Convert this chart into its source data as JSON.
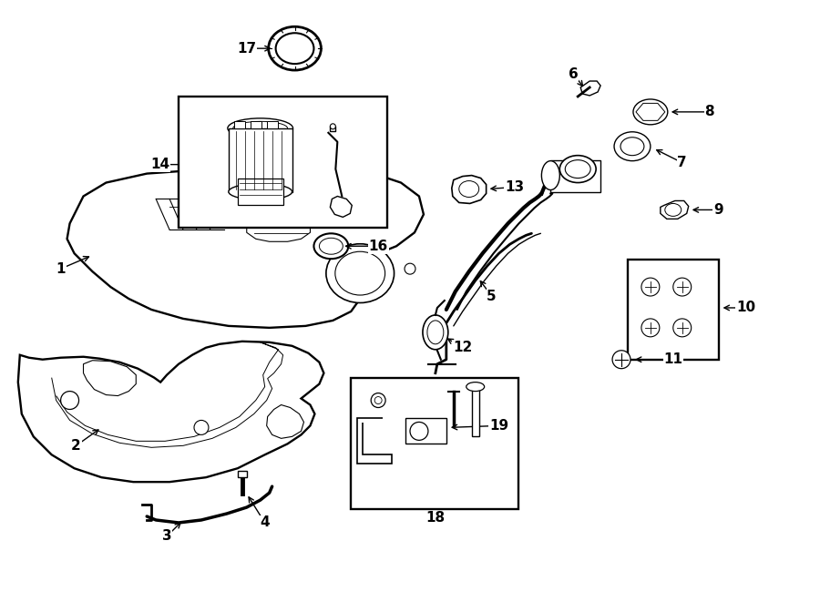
{
  "bg_color": "#ffffff",
  "line_color": "#000000",
  "figsize": [
    9.0,
    6.61
  ],
  "dpi": 100,
  "label_fontsize": 11,
  "label_fontweight": "bold"
}
